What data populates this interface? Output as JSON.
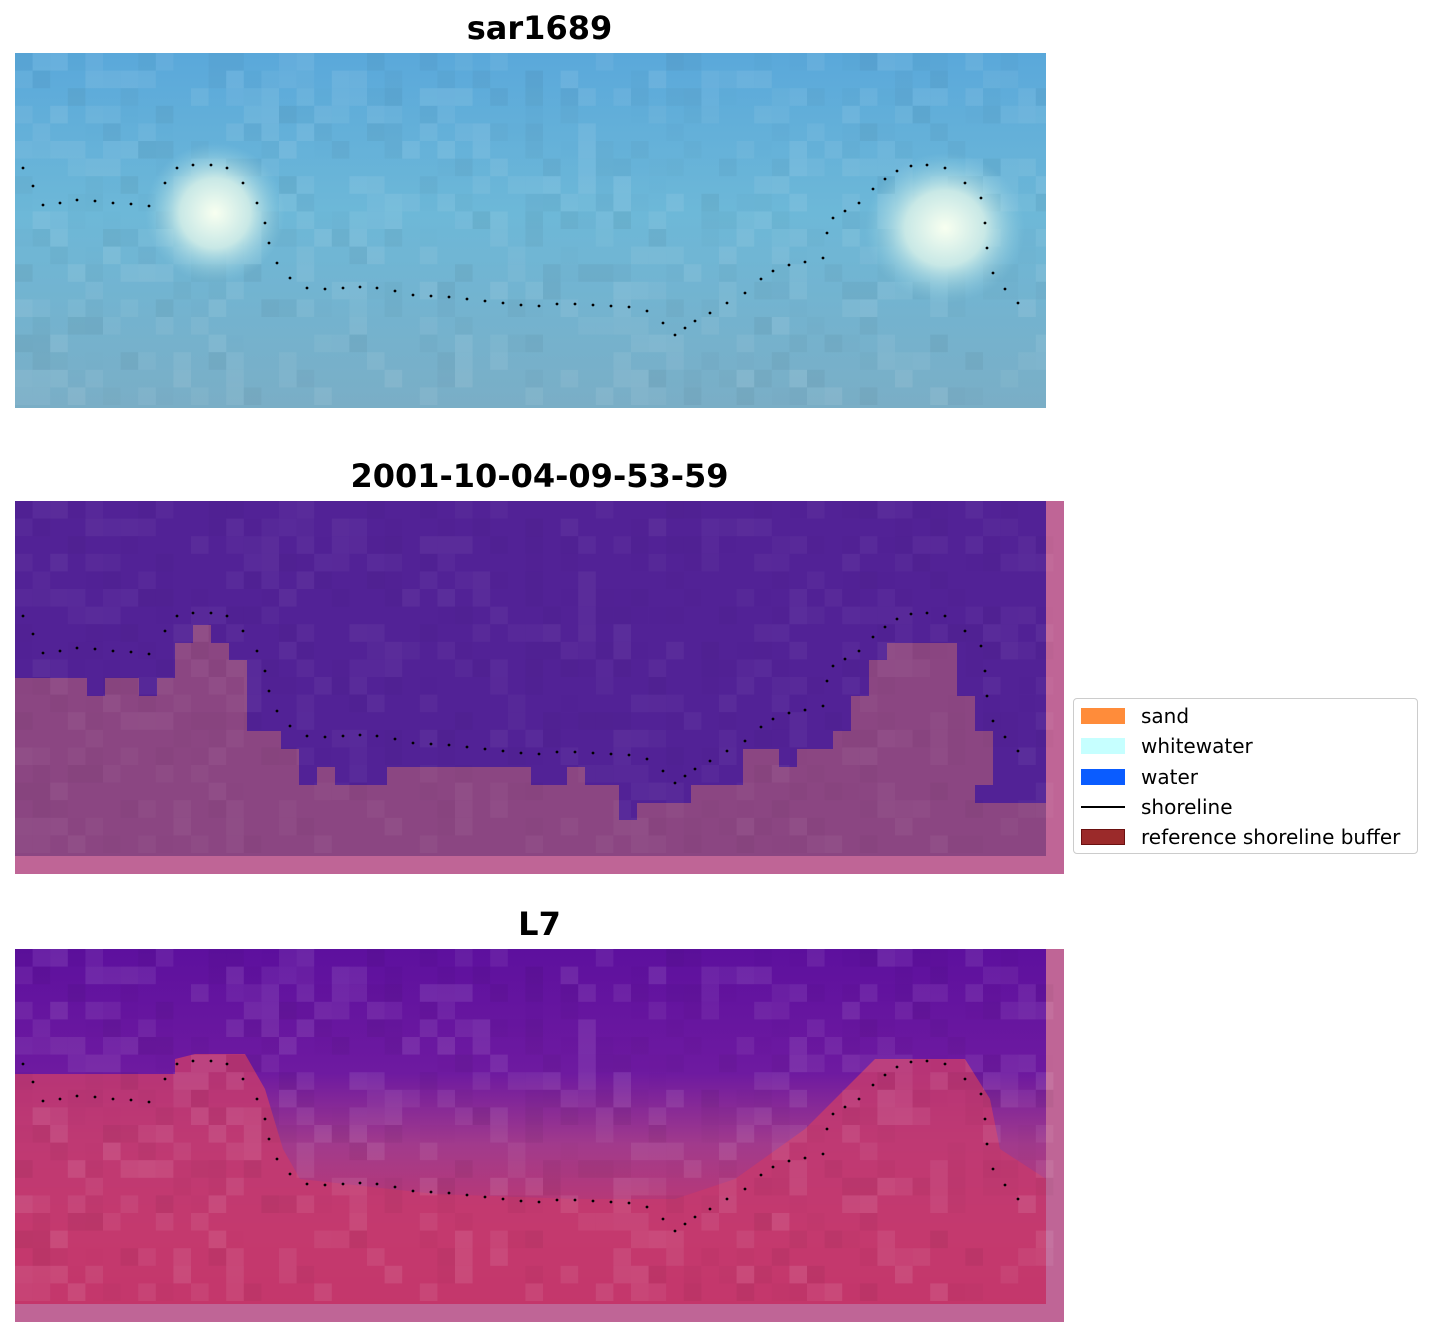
{
  "panels": [
    {
      "title": "sar1689"
    },
    {
      "title": "2001-10-04-09-53-59"
    },
    {
      "title": "L7"
    }
  ],
  "legend": {
    "items": [
      {
        "label": "sand",
        "color": "#ff8c3a",
        "kind": "patch"
      },
      {
        "label": "whitewater",
        "color": "#c6ffff",
        "kind": "patch"
      },
      {
        "label": "water",
        "color": "#0a5cff",
        "kind": "patch"
      },
      {
        "label": "shoreline",
        "color": "#000000",
        "kind": "line"
      },
      {
        "label": "reference shoreline buffer",
        "color": "#9b2a2a",
        "kind": "patch-outlined"
      }
    ]
  },
  "colors": {
    "classified_water_purple": "#522296",
    "classified_land_mauve": "#8b4682",
    "buffer_pink": "#bf6596",
    "rgb_sky_blue": "#6fb3d6",
    "nir_purple": "#6a1aa0",
    "nir_red": "#c41448",
    "shoreline_dots": "#000000"
  }
}
